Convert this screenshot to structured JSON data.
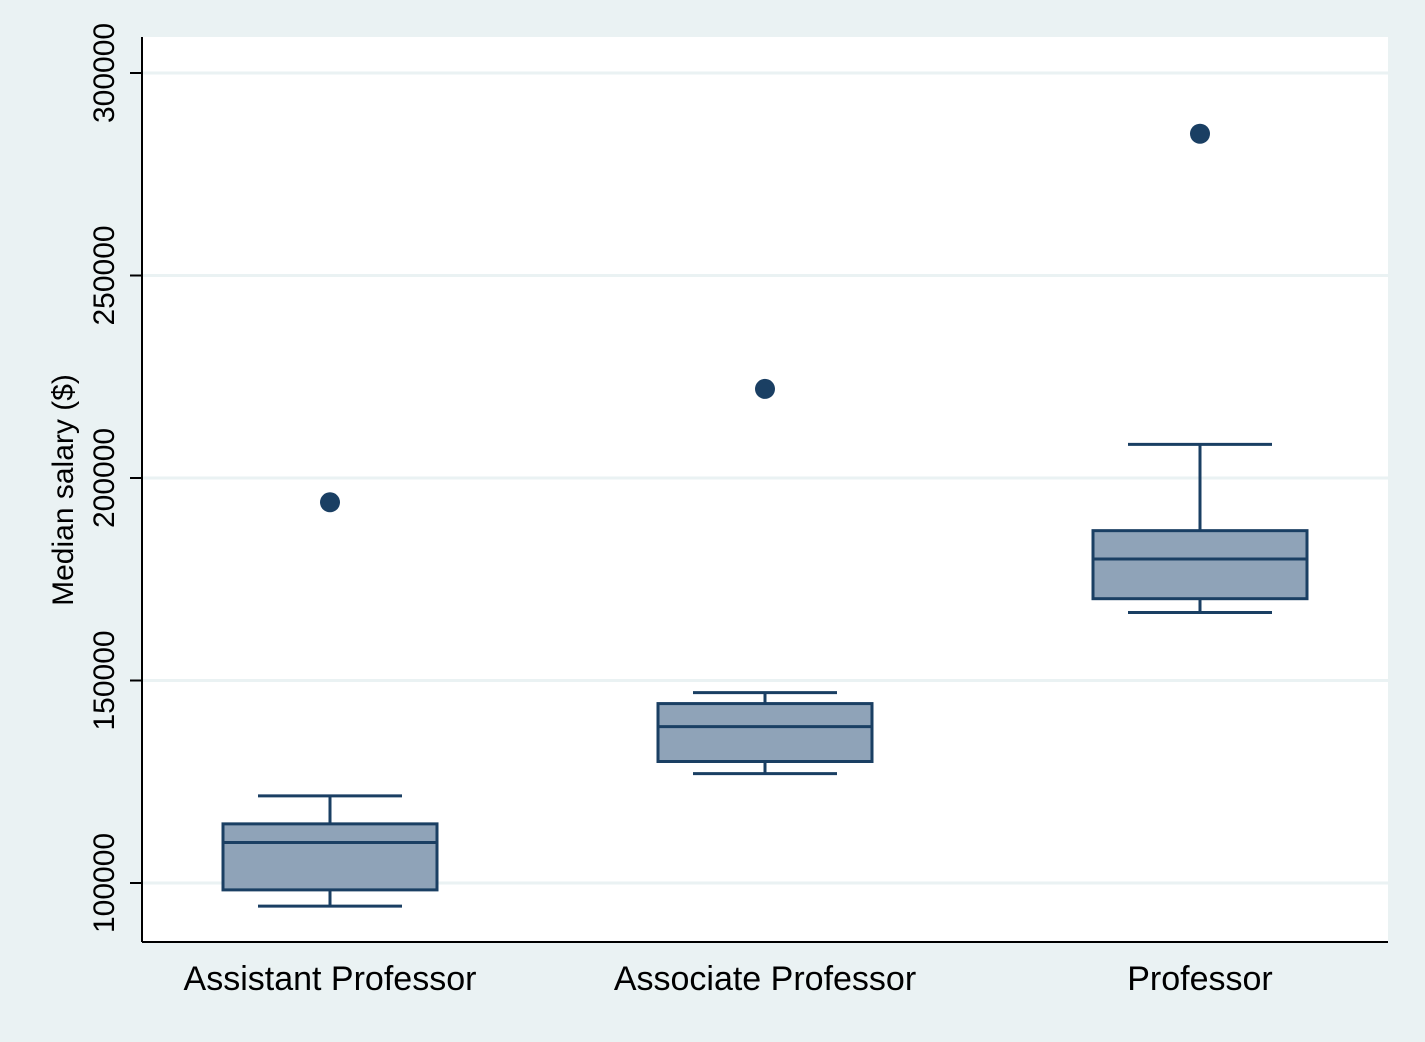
{
  "chart_data": {
    "type": "box",
    "title": "",
    "xlabel": "",
    "ylabel": "Median salary ($)",
    "ylim": [
      85000,
      310000
    ],
    "yticks": [
      100000,
      150000,
      200000,
      250000,
      300000
    ],
    "ytick_labels": [
      "100000",
      "150000",
      "200000",
      "250000",
      "300000"
    ],
    "grid": true,
    "legend": "none",
    "colors": {
      "box_fill": "#8fa3b8",
      "box_stroke": "#1a3f63",
      "outlier": "#1a3f63",
      "plot_background": "#ffffff",
      "figure_background": "#eaf2f3",
      "gridline": "#eaf2f3"
    },
    "categories": [
      "Assistant Professor",
      "Associate Professor",
      "Professor"
    ],
    "boxes": [
      {
        "category": "Assistant Professor",
        "whisker_low": 94300,
        "q1": 98300,
        "median": 110000,
        "q3": 114600,
        "whisker_high": 121500,
        "outliers": [
          194000
        ]
      },
      {
        "category": "Associate Professor",
        "whisker_low": 127000,
        "q1": 130000,
        "median": 138600,
        "q3": 144300,
        "whisker_high": 147000,
        "outliers": [
          222000
        ]
      },
      {
        "category": "Professor",
        "whisker_low": 166800,
        "q1": 170200,
        "median": 180000,
        "q3": 187000,
        "whisker_high": 208300,
        "outliers": [
          285000
        ]
      }
    ]
  }
}
